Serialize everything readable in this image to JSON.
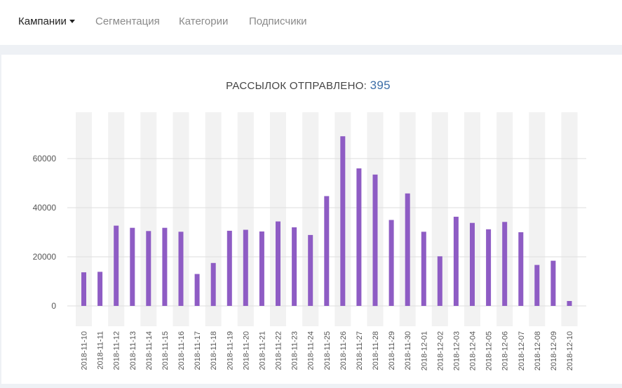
{
  "nav": {
    "items": [
      {
        "label": "Кампании",
        "active": true,
        "dropdown": true
      },
      {
        "label": "Сегментация",
        "active": false
      },
      {
        "label": "Категории",
        "active": false
      },
      {
        "label": "Подписчики",
        "active": false
      }
    ]
  },
  "summary": {
    "label": "РАССЫЛОК ОТПРАВЛЕНО:",
    "count": "395"
  },
  "colors": {
    "bar": "#8e5cc4",
    "stripe": "#f2f2f2",
    "grid": "#dddddd",
    "count": "#3d6ea8"
  },
  "chart_data": {
    "type": "bar",
    "categories": [
      "2018-11-10",
      "2018-11-11",
      "2018-11-12",
      "2018-11-13",
      "2018-11-14",
      "2018-11-15",
      "2018-11-16",
      "2018-11-17",
      "2018-11-18",
      "2018-11-19",
      "2018-11-20",
      "2018-11-21",
      "2018-11-22",
      "2018-11-23",
      "2018-11-24",
      "2018-11-25",
      "2018-11-26",
      "2018-11-27",
      "2018-11-28",
      "2018-11-29",
      "2018-11-30",
      "2018-12-01",
      "2018-12-02",
      "2018-12-03",
      "2018-12-04",
      "2018-12-05",
      "2018-12-06",
      "2018-12-07",
      "2018-12-08",
      "2018-12-09",
      "2018-12-10"
    ],
    "values": [
      13700,
      13900,
      32700,
      31800,
      30500,
      31800,
      30200,
      13000,
      17500,
      30600,
      31000,
      30300,
      34400,
      32000,
      28900,
      44700,
      69100,
      56000,
      53500,
      35000,
      45800,
      30200,
      20200,
      36300,
      33800,
      31200,
      34200,
      30000,
      16700,
      18400,
      2000
    ],
    "yticks": [
      0,
      20000,
      40000,
      60000
    ],
    "ylim": [
      -8000,
      79000
    ],
    "grid": true,
    "alternating_background": true
  }
}
